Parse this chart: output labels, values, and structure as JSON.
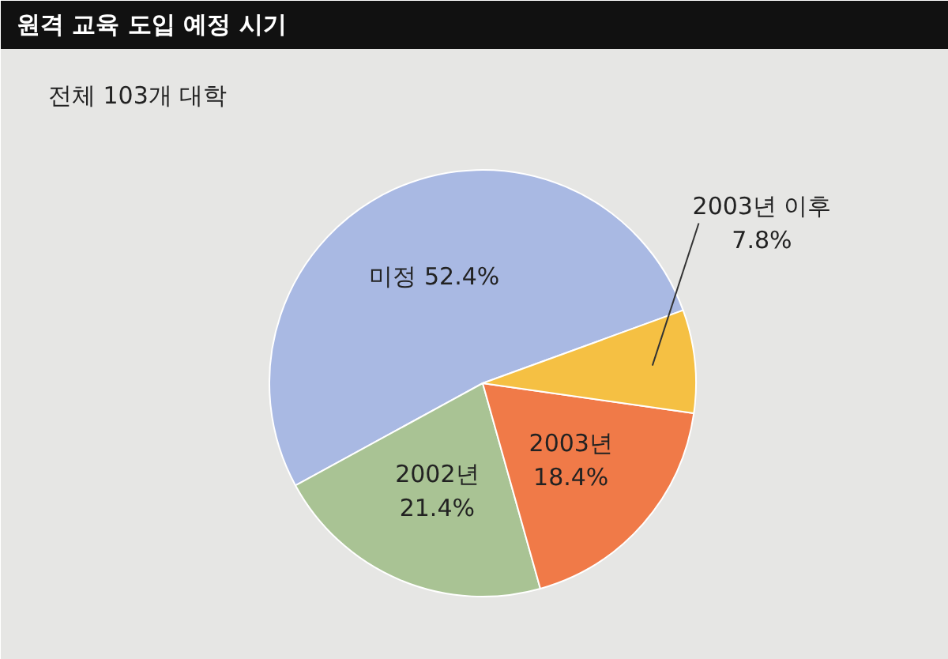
{
  "chart_data": {
    "type": "pie",
    "title": "원격 교육 도입 예정 시기",
    "subtitle": "전체 103개 대학",
    "categories": [
      "미정",
      "2002년",
      "2003년",
      "2003년 이후"
    ],
    "values": [
      52.4,
      21.4,
      18.4,
      7.8
    ],
    "value_labels": [
      "52.4%",
      "21.4%",
      "18.4%",
      "7.8%"
    ],
    "colors": [
      "#a9b9e3",
      "#a9c394",
      "#f07a48",
      "#f5c043"
    ]
  }
}
